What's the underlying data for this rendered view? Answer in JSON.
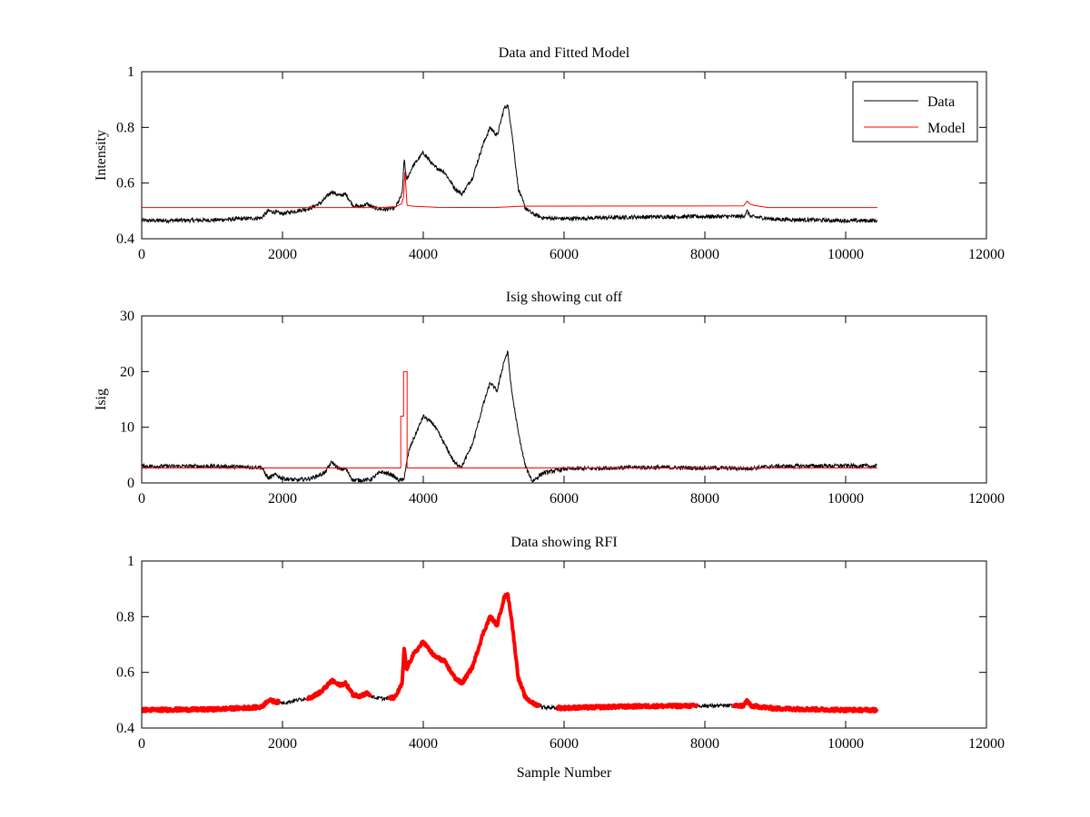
{
  "chart_data": [
    {
      "type": "line",
      "title": "Data and Fitted Model",
      "xlabel": "",
      "ylabel": "Intensity",
      "xlim": [
        0,
        12000
      ],
      "ylim": [
        0.4,
        1.0
      ],
      "xticks": [
        0,
        2000,
        4000,
        6000,
        8000,
        10000,
        12000
      ],
      "xtick_labels": [
        "0",
        "2000",
        "4000",
        "6000",
        "8000",
        "10000",
        "12000"
      ],
      "yticks": [
        0.4,
        0.6,
        0.8,
        1.0
      ],
      "ytick_labels": [
        "0.4",
        "0.6",
        "0.8",
        "1"
      ],
      "grid": false,
      "legend": {
        "placement": "top-right",
        "entries": [
          "Data",
          "Model"
        ]
      },
      "series": [
        {
          "name": "Data",
          "color": "#000000",
          "style": "noisy",
          "x": [
            0,
            1000,
            1700,
            1800,
            1900,
            2000,
            2200,
            2400,
            2550,
            2700,
            2800,
            2900,
            3000,
            3100,
            3200,
            3300,
            3450,
            3600,
            3700,
            3730,
            3760,
            3850,
            4000,
            4150,
            4300,
            4450,
            4550,
            4700,
            4850,
            4950,
            5050,
            5150,
            5200,
            5250,
            5350,
            5450,
            5550,
            5700,
            6000,
            7000,
            8000,
            8550,
            8600,
            8650,
            9000,
            10000,
            10450
          ],
          "y": [
            0.465,
            0.467,
            0.475,
            0.5,
            0.495,
            0.49,
            0.5,
            0.51,
            0.53,
            0.57,
            0.555,
            0.56,
            0.52,
            0.515,
            0.525,
            0.51,
            0.505,
            0.51,
            0.56,
            0.69,
            0.61,
            0.66,
            0.71,
            0.66,
            0.64,
            0.58,
            0.56,
            0.62,
            0.74,
            0.8,
            0.77,
            0.87,
            0.88,
            0.8,
            0.58,
            0.51,
            0.49,
            0.475,
            0.472,
            0.478,
            0.48,
            0.48,
            0.5,
            0.48,
            0.47,
            0.465,
            0.465
          ]
        },
        {
          "name": "Model",
          "color": "#ff0000",
          "style": "smooth",
          "x": [
            0,
            3400,
            3600,
            3690,
            3720,
            3740,
            3770,
            3850,
            4200,
            5000,
            5400,
            8550,
            8600,
            8640,
            8700,
            8900,
            10450
          ],
          "y": [
            0.512,
            0.512,
            0.515,
            0.525,
            0.55,
            0.64,
            0.52,
            0.517,
            0.513,
            0.512,
            0.517,
            0.518,
            0.535,
            0.525,
            0.52,
            0.512,
            0.512
          ]
        }
      ]
    },
    {
      "type": "line",
      "title": "Isig showing cut off",
      "xlabel": "",
      "ylabel": "Isig",
      "xlim": [
        0,
        12000
      ],
      "ylim": [
        0,
        30
      ],
      "xticks": [
        0,
        2000,
        4000,
        6000,
        8000,
        10000,
        12000
      ],
      "xtick_labels": [
        "0",
        "2000",
        "4000",
        "6000",
        "8000",
        "10000",
        "12000"
      ],
      "yticks": [
        0,
        10,
        20,
        30
      ],
      "ytick_labels": [
        "0",
        "10",
        "20",
        "30"
      ],
      "grid": false,
      "series": [
        {
          "name": "Isig",
          "color": "#000000",
          "style": "noisy",
          "x": [
            0,
            1000,
            1700,
            1800,
            1900,
            2000,
            2200,
            2400,
            2600,
            2700,
            2800,
            2900,
            3000,
            3100,
            3250,
            3400,
            3550,
            3650,
            3720,
            3800,
            3900,
            4000,
            4150,
            4300,
            4450,
            4550,
            4700,
            4850,
            4950,
            5050,
            5150,
            5200,
            5250,
            5350,
            5450,
            5550,
            5700,
            6000,
            7000,
            8000,
            8600,
            9000,
            10000,
            10450
          ],
          "y": [
            3.0,
            3.0,
            2.8,
            0.8,
            1.5,
            0.8,
            0.5,
            0.8,
            1.8,
            3.8,
            2.5,
            2.5,
            0.5,
            0.5,
            0.6,
            2.0,
            1.5,
            0.5,
            0.5,
            6.0,
            9.0,
            12.0,
            10.5,
            7.0,
            3.5,
            3.0,
            7.0,
            14.0,
            18.0,
            16.5,
            22.0,
            23.5,
            17.0,
            9.0,
            3.0,
            0.3,
            1.8,
            2.5,
            2.8,
            2.7,
            2.6,
            3.0,
            3.1,
            3.0
          ]
        },
        {
          "name": "Cut off",
          "color": "#ff0000",
          "style": "step",
          "x": [
            0,
            3680,
            3680,
            3720,
            3720,
            3770,
            3770,
            10450
          ],
          "y": [
            2.7,
            2.7,
            12.0,
            12.0,
            20.0,
            20.0,
            2.7,
            2.7
          ]
        }
      ]
    },
    {
      "type": "line",
      "title": "Data showing RFI",
      "xlabel": "Sample Number",
      "ylabel": "",
      "xlim": [
        0,
        12000
      ],
      "ylim": [
        0.4,
        1.0
      ],
      "xticks": [
        0,
        2000,
        4000,
        6000,
        8000,
        10000,
        12000
      ],
      "xtick_labels": [
        "0",
        "2000",
        "4000",
        "6000",
        "8000",
        "10000",
        "12000"
      ],
      "yticks": [
        0.4,
        0.6,
        0.8,
        1.0
      ],
      "ytick_labels": [
        "0.4",
        "0.6",
        "0.8",
        "1"
      ],
      "grid": false,
      "series": [
        {
          "name": "Data",
          "color": "#000000",
          "style": "noisy",
          "x": [
            0,
            1000,
            1700,
            1800,
            1900,
            2000,
            2200,
            2400,
            2550,
            2700,
            2800,
            2900,
            3000,
            3100,
            3200,
            3300,
            3450,
            3600,
            3700,
            3730,
            3760,
            3850,
            4000,
            4150,
            4300,
            4450,
            4550,
            4700,
            4850,
            4950,
            5050,
            5150,
            5200,
            5250,
            5350,
            5450,
            5550,
            5700,
            6000,
            7000,
            8000,
            8550,
            8600,
            8650,
            9000,
            10000,
            10450
          ],
          "y": [
            0.465,
            0.467,
            0.475,
            0.5,
            0.495,
            0.49,
            0.5,
            0.51,
            0.53,
            0.57,
            0.555,
            0.56,
            0.52,
            0.515,
            0.525,
            0.51,
            0.505,
            0.51,
            0.56,
            0.69,
            0.61,
            0.66,
            0.71,
            0.66,
            0.64,
            0.58,
            0.56,
            0.62,
            0.74,
            0.8,
            0.77,
            0.87,
            0.88,
            0.8,
            0.58,
            0.51,
            0.49,
            0.475,
            0.472,
            0.478,
            0.48,
            0.48,
            0.5,
            0.48,
            0.47,
            0.465,
            0.465
          ]
        }
      ],
      "rfi_segments": [
        [
          0,
          1950
        ],
        [
          2350,
          3250
        ],
        [
          3500,
          5650
        ],
        [
          5900,
          7900
        ],
        [
          8400,
          10450
        ]
      ],
      "rfi_color": "#ff0000"
    }
  ]
}
